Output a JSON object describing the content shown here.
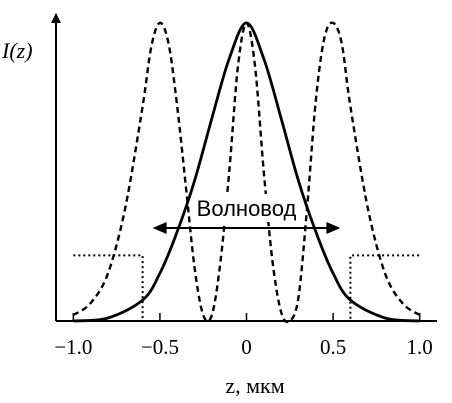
{
  "chart_data": {
    "type": "line",
    "title": "",
    "xlabel": "z, мкм",
    "ylabel": "I(z)",
    "xlim": [
      -1.1,
      1.1
    ],
    "ylim": [
      0,
      1.05
    ],
    "x_ticks": [
      -1.0,
      -0.5,
      0,
      0.5,
      1.0
    ],
    "x_tick_labels": [
      "−1.0",
      "−0.5",
      "0",
      "0.5",
      "1.0"
    ],
    "grid": false,
    "legend": "none",
    "series": [
      {
        "style": "solid",
        "color": "#000000",
        "x": [
          -1.0,
          -0.8,
          -0.6,
          -0.5,
          -0.4,
          -0.3,
          -0.2,
          -0.1,
          0.0,
          0.1,
          0.2,
          0.3,
          0.4,
          0.5,
          0.6,
          0.8,
          1.0
        ],
        "values": [
          0.0,
          0.01,
          0.07,
          0.16,
          0.3,
          0.47,
          0.68,
          0.88,
          1.0,
          0.88,
          0.68,
          0.47,
          0.3,
          0.16,
          0.07,
          0.01,
          0.0
        ]
      },
      {
        "style": "dashed",
        "color": "#000000",
        "x": [
          -1.0,
          -0.9,
          -0.8,
          -0.7,
          -0.6,
          -0.55,
          -0.5,
          -0.45,
          -0.4,
          -0.35,
          -0.3,
          -0.25,
          -0.2,
          -0.15,
          -0.1,
          -0.05,
          0.0,
          0.05,
          0.1,
          0.15,
          0.2,
          0.25,
          0.3,
          0.35,
          0.4,
          0.45,
          0.5,
          0.55,
          0.6,
          0.7,
          0.8,
          0.9,
          1.0
        ],
        "values": [
          0.02,
          0.06,
          0.16,
          0.38,
          0.72,
          0.92,
          1.0,
          0.93,
          0.72,
          0.45,
          0.18,
          0.02,
          0.02,
          0.2,
          0.5,
          0.85,
          1.0,
          0.85,
          0.5,
          0.2,
          0.03,
          0.0,
          0.08,
          0.38,
          0.74,
          0.95,
          1.0,
          0.93,
          0.72,
          0.38,
          0.16,
          0.06,
          0.02
        ]
      },
      {
        "style": "dotted",
        "color": "#000000",
        "x": [
          -1.0,
          -0.6,
          -0.6,
          0.6,
          0.6,
          1.0
        ],
        "values": [
          0.22,
          0.22,
          0.0,
          0.0,
          0.22,
          0.22
        ]
      }
    ],
    "annotations": [
      {
        "text": "Волновод",
        "arrow": "both",
        "x_from": -0.6,
        "x_to": 0.6
      }
    ]
  }
}
